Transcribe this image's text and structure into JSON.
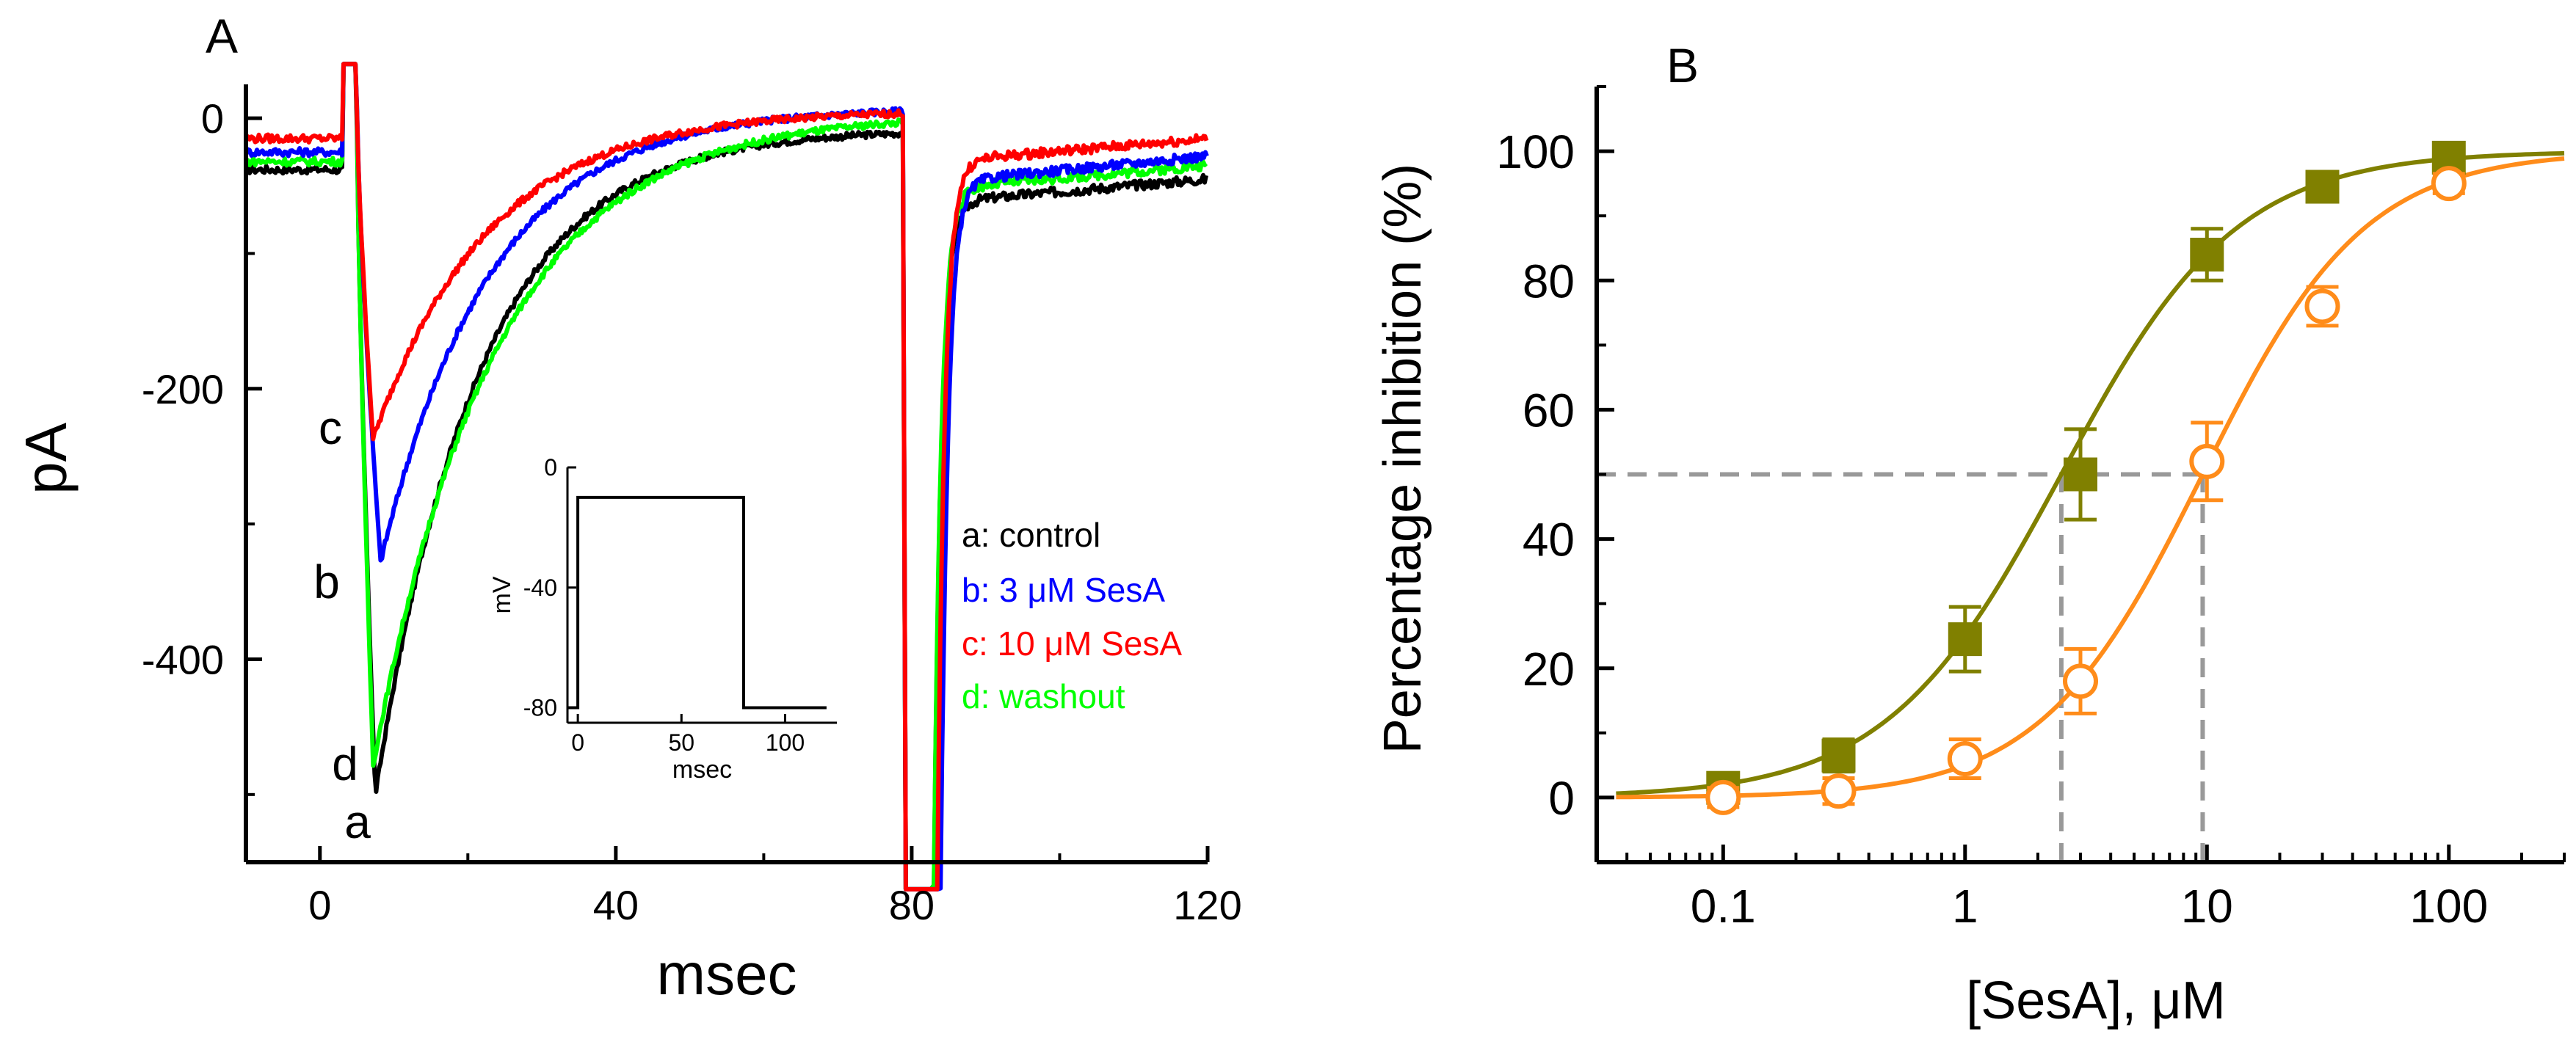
{
  "chart_data": [
    {
      "panel": "A",
      "type": "line",
      "title": "",
      "xlabel": "msec",
      "ylabel": "pA",
      "xlim": [
        -10,
        120
      ],
      "ylim": [
        -550,
        25
      ],
      "xticks": [
        0,
        40,
        80,
        120
      ],
      "xtick_labels": [
        "0",
        "40",
        "80",
        "120"
      ],
      "yticks": [
        0,
        -200,
        -400
      ],
      "ytick_labels": [
        "0",
        "-200",
        "-400"
      ],
      "grid": false,
      "legend": [
        {
          "text": "a: control",
          "color": "#000000"
        },
        {
          "text": "b: 3 μM SesA",
          "color": "#0000ff"
        },
        {
          "text": "c: 10 μM SesA",
          "color": "#ff0000"
        },
        {
          "text": "d: washout",
          "color": "#00ff00"
        }
      ],
      "trace_labels": [
        "a",
        "b",
        "c",
        "d"
      ],
      "series": [
        {
          "name": "a: control",
          "label": "a",
          "color": "#000000",
          "baseline": -38,
          "peak_time": 7.5,
          "peak": -500,
          "end_level": -8,
          "tail_level": -60,
          "tail_end": -45
        },
        {
          "name": "b: 3 μM SesA",
          "label": "b",
          "color": "#0000ff",
          "baseline": -25,
          "peak_time": 8.2,
          "peak": -328,
          "end_level": 8,
          "tail_level": -45,
          "tail_end": -28
        },
        {
          "name": "c: 10 μM SesA",
          "label": "c",
          "color": "#ff0000",
          "baseline": -15,
          "peak_time": 7.2,
          "peak": -237,
          "end_level": 6,
          "tail_level": -30,
          "tail_end": -15
        },
        {
          "name": "d: washout",
          "label": "d",
          "color": "#00ff00",
          "baseline": -32,
          "peak_time": 7.2,
          "peak": -478,
          "end_level": 3,
          "tail_level": -50,
          "tail_end": -35
        }
      ],
      "inset": {
        "type": "line",
        "xlabel": "msec",
        "ylabel": "mV",
        "xlim": [
          -5,
          125
        ],
        "ylim": [
          -85,
          0
        ],
        "xticks": [
          0,
          50,
          100
        ],
        "xtick_labels": [
          "0",
          "50",
          "100"
        ],
        "yticks": [
          0,
          -40,
          -80
        ],
        "ytick_labels": [
          "0",
          "-40",
          "-80"
        ],
        "x": [
          -5,
          0,
          0,
          80,
          80,
          120
        ],
        "y": [
          -80,
          -80,
          -10,
          -10,
          -80,
          -80
        ]
      }
    },
    {
      "panel": "B",
      "type": "scatter",
      "title": "",
      "xlabel": "[SesA], μM",
      "ylabel": "Percentage inhibition (%)",
      "xscale": "log",
      "xlim": [
        0.03,
        300
      ],
      "ylim": [
        -10,
        110
      ],
      "xticks": [
        0.1,
        1,
        10,
        100
      ],
      "xtick_labels": [
        "0.1",
        "1",
        "10",
        "100"
      ],
      "yticks": [
        0,
        20,
        40,
        60,
        80,
        100
      ],
      "ytick_labels": [
        "0",
        "20",
        "40",
        "60",
        "80",
        "100"
      ],
      "grid": false,
      "series": [
        {
          "name": "filled squares",
          "marker": "filled-square",
          "color": "#808000",
          "x": [
            0.1,
            0.3,
            1,
            3,
            10,
            30,
            100
          ],
          "y": [
            1.5,
            6.5,
            24.5,
            50,
            84,
            94.5,
            99
          ],
          "err": [
            2,
            2.5,
            5,
            7,
            4,
            2,
            1.5
          ],
          "fit": {
            "model": "hill",
            "ic50": 2.5,
            "n_h": 1.2
          }
        },
        {
          "name": "open circles",
          "marker": "open-circle",
          "color": "#ff8c1a",
          "x": [
            0.1,
            0.3,
            1,
            3,
            10,
            30,
            100
          ],
          "y": [
            0,
            1,
            6,
            18,
            52,
            76,
            95
          ],
          "err": [
            1.5,
            2,
            3,
            5,
            6,
            3,
            1.5
          ],
          "fit": {
            "model": "hill",
            "ic50": 9.6,
            "n_h": 1.3
          }
        }
      ],
      "reference_lines": [
        {
          "x_from": 0.03,
          "y": 50,
          "x_to": 9.6
        },
        {
          "x": 2.5,
          "y_from": -10,
          "y_to": 50
        },
        {
          "x": 9.6,
          "y_from": -10,
          "y_to": 50
        }
      ]
    }
  ]
}
